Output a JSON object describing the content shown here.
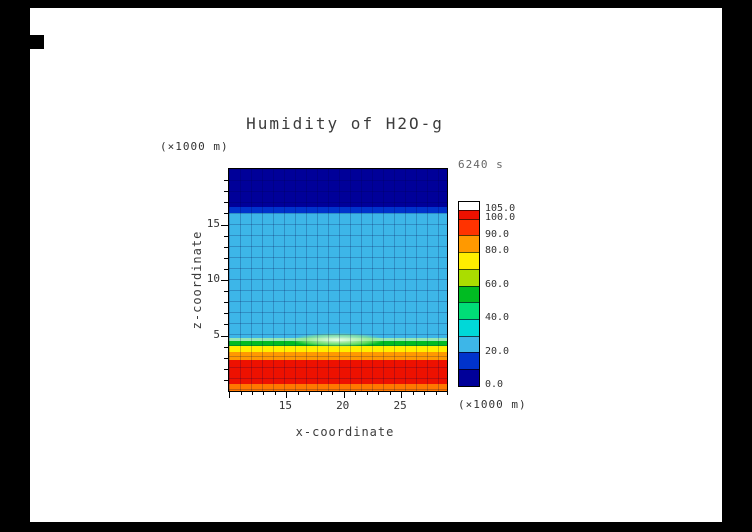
{
  "figure": {
    "background": "#000000",
    "canvas_background": "#ffffff"
  },
  "chart_data": {
    "type": "heatmap",
    "title": "Humidity of H2O-g",
    "time_label": "6240 s",
    "xlabel": "x-coordinate",
    "ylabel": "z-coordinate",
    "x_unit": "(×1000 m)",
    "y_unit": "(×1000 m)",
    "x_range": [
      10,
      29
    ],
    "y_range": [
      0,
      20
    ],
    "x_ticks": [
      15,
      20,
      25
    ],
    "y_ticks": [
      5,
      10,
      15
    ],
    "grid": true,
    "legend_position": "right",
    "colorbar": {
      "labels": [
        "105.0",
        "100.0",
        "90.0",
        "80.0",
        "60.0",
        "40.0",
        "20.0",
        "0.0"
      ],
      "label_values": [
        105,
        100,
        90,
        80,
        60,
        40,
        20,
        0
      ],
      "max_display": 110,
      "segments": [
        {
          "from": 0,
          "to": 10,
          "color": "#000099"
        },
        {
          "from": 10,
          "to": 20,
          "color": "#0033cc"
        },
        {
          "from": 20,
          "to": 30,
          "color": "#3db6e8"
        },
        {
          "from": 30,
          "to": 40,
          "color": "#00d8d8"
        },
        {
          "from": 40,
          "to": 50,
          "color": "#00dd77"
        },
        {
          "from": 50,
          "to": 60,
          "color": "#00bb22"
        },
        {
          "from": 60,
          "to": 70,
          "color": "#aadd00"
        },
        {
          "from": 70,
          "to": 80,
          "color": "#ffee00"
        },
        {
          "from": 80,
          "to": 90,
          "color": "#ff9900"
        },
        {
          "from": 90,
          "to": 100,
          "color": "#ff3300"
        },
        {
          "from": 100,
          "to": 105,
          "color": "#ee1100"
        },
        {
          "from": 105,
          "to": 110,
          "color": "#ffffff"
        }
      ]
    },
    "field_rows": [
      {
        "band": "upper-dry-layer",
        "value_range": [
          0,
          10
        ],
        "color": "#000099",
        "frac": 0.171
      },
      {
        "band": "upper-transition",
        "value_range": [
          10,
          20
        ],
        "color": "#0033cc",
        "frac": 0.027
      },
      {
        "band": "mid-level-layer",
        "value_range": [
          20,
          30
        ],
        "color": "#3db6e8",
        "frac": 0.563
      },
      {
        "band": "contour-highlight",
        "value_range": [
          35,
          45
        ],
        "color": "#99e6b3",
        "frac": 0.014
      },
      {
        "band": "green-layer",
        "value_range": [
          50,
          60
        ],
        "color": "#00bb22",
        "frac": 0.023
      },
      {
        "band": "yellow-layer",
        "value_range": [
          70,
          80
        ],
        "color": "#ffee00",
        "frac": 0.027
      },
      {
        "band": "orange-layer",
        "value_range": [
          80,
          90
        ],
        "color": "#ff9900",
        "frac": 0.036
      },
      {
        "band": "surface-moist-layer",
        "value_range": [
          90,
          105
        ],
        "color": "#ee1100",
        "frac": 0.108
      },
      {
        "band": "surface-edge",
        "value_range": [
          80,
          90
        ],
        "color": "#ff7700",
        "frac": 0.031
      }
    ]
  }
}
